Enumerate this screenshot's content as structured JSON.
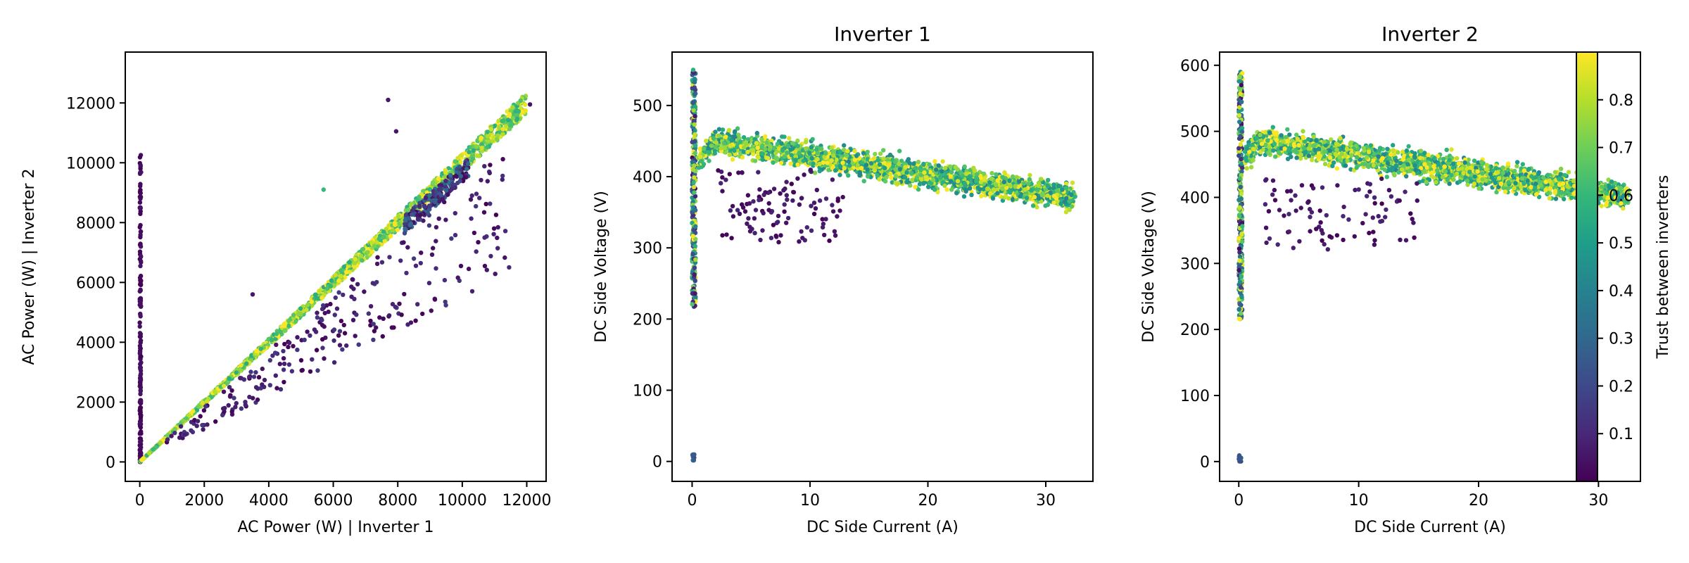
{
  "chart_data": [
    {
      "type": "scatter",
      "title": "",
      "xlabel": "AC Power (W) | Inverter 1",
      "ylabel": "AC Power (W) | Inverter 2",
      "xlim": [
        -450,
        12600
      ],
      "ylim": [
        -650,
        13700
      ],
      "xticks": [
        0,
        2000,
        4000,
        6000,
        8000,
        10000,
        12000
      ],
      "yticks": [
        0,
        2000,
        4000,
        6000,
        8000,
        10000,
        12000
      ],
      "color_by": "Trust between inverters",
      "groups": [
        {
          "name": "",
          "desc": "vertical streak at x=0",
          "x_range": [
            0,
            40
          ],
          "y_range": [
            0,
            10300
          ],
          "trust": [
            0.0,
            0.05
          ],
          "count": 180
        },
        {
          "name": "",
          "desc": "main diagonal band y≈x",
          "x_range": [
            0,
            12000
          ],
          "ratio": [
            0.97,
            1.03
          ],
          "trust": [
            0.55,
            0.95
          ],
          "count": 1500
        },
        {
          "name": "",
          "desc": "outliers below diagonal",
          "x_range": [
            800,
            11500
          ],
          "ratio": [
            0.55,
            0.93
          ],
          "trust": [
            0.0,
            0.15
          ],
          "count": 260
        },
        {
          "name": "",
          "desc": "cluster near 9000-10000",
          "x_range": [
            8200,
            10200
          ],
          "y_range": [
            8700,
            10300
          ],
          "trust": [
            0.0,
            0.35
          ],
          "count": 220
        }
      ],
      "outlier_points": [
        {
          "x": 7700,
          "y": 12100,
          "trust": 0.05
        },
        {
          "x": 7950,
          "y": 11050,
          "trust": 0.05
        },
        {
          "x": 5700,
          "y": 9100,
          "trust": 0.6
        },
        {
          "x": 12100,
          "y": 11950,
          "trust": 0.05
        },
        {
          "x": 3500,
          "y": 5600,
          "trust": 0.05
        }
      ]
    },
    {
      "type": "scatter",
      "title": "Inverter 1",
      "xlabel": "DC Side Current (A)",
      "ylabel": "DC Side Voltage (V)",
      "xlim": [
        -1.7,
        34.0
      ],
      "ylim": [
        -28,
        575
      ],
      "xticks": [
        0,
        10,
        20,
        30
      ],
      "yticks": [
        0,
        100,
        200,
        300,
        400,
        500
      ],
      "color_by": "Trust between inverters",
      "groups": [
        {
          "name": "",
          "desc": "vertical band near 0 A",
          "x_range": [
            0,
            0.3
          ],
          "y_range": [
            215,
            550
          ],
          "trust": [
            0.0,
            0.95
          ],
          "count": 280
        },
        {
          "name": "",
          "desc": "main curved band",
          "x_range": [
            0.5,
            32.5
          ],
          "v_at_x": "455 - 2.6*x (±28)",
          "trust": [
            0.4,
            0.95
          ],
          "count": 2200
        },
        {
          "name": "",
          "desc": "low-trust scatter below band",
          "x_range": [
            2,
            13
          ],
          "y_range": [
            305,
            410
          ],
          "trust": [
            0.0,
            0.1
          ],
          "count": 110
        },
        {
          "name": "",
          "desc": "points at origin",
          "x_range": [
            0,
            0.2
          ],
          "y_range": [
            0,
            10
          ],
          "trust": [
            0.2,
            0.3
          ],
          "count": 10
        }
      ]
    },
    {
      "type": "scatter",
      "title": "Inverter 2",
      "xlabel": "DC Side Current (A)",
      "ylabel": "DC Side Voltage (V)",
      "xlim": [
        -1.6,
        33.5
      ],
      "ylim": [
        -30,
        620
      ],
      "xticks": [
        0,
        10,
        20,
        30
      ],
      "yticks": [
        0,
        100,
        200,
        300,
        400,
        500,
        600
      ],
      "color_by": "Trust between inverters",
      "groups": [
        {
          "name": "",
          "desc": "vertical band near 0 A",
          "x_range": [
            0,
            0.3
          ],
          "y_range": [
            215,
            590
          ],
          "trust": [
            0.0,
            0.95
          ],
          "count": 280
        },
        {
          "name": "",
          "desc": "main curved band",
          "x_range": [
            0.5,
            32.5
          ],
          "v_at_x": "490 - 2.7*x (±30)",
          "trust": [
            0.4,
            0.95
          ],
          "count": 2200
        },
        {
          "name": "",
          "desc": "low-trust scatter below band",
          "x_range": [
            1.5,
            15
          ],
          "y_range": [
            320,
            430
          ],
          "trust": [
            0.0,
            0.1
          ],
          "count": 90
        },
        {
          "name": "",
          "desc": "points at origin",
          "x_range": [
            0,
            0.2
          ],
          "y_range": [
            0,
            10
          ],
          "trust": [
            0.2,
            0.3
          ],
          "count": 10
        }
      ]
    }
  ],
  "colorbar": {
    "label": "Trust between inverters",
    "colormap": "viridis",
    "range": [
      0.0,
      0.9
    ],
    "ticks": [
      0.1,
      0.2,
      0.3,
      0.4,
      0.5,
      0.6,
      0.7,
      0.8
    ],
    "tick_labels": [
      "0.1",
      "0.2",
      "0.3",
      "0.4",
      "0.5",
      "0.6",
      "0.7",
      "0.8"
    ]
  },
  "colors": {
    "viridis": [
      "#440154",
      "#482878",
      "#3e4989",
      "#31688e",
      "#26828e",
      "#1f9e89",
      "#35b779",
      "#6ece58",
      "#b5de2b",
      "#fde725"
    ]
  }
}
